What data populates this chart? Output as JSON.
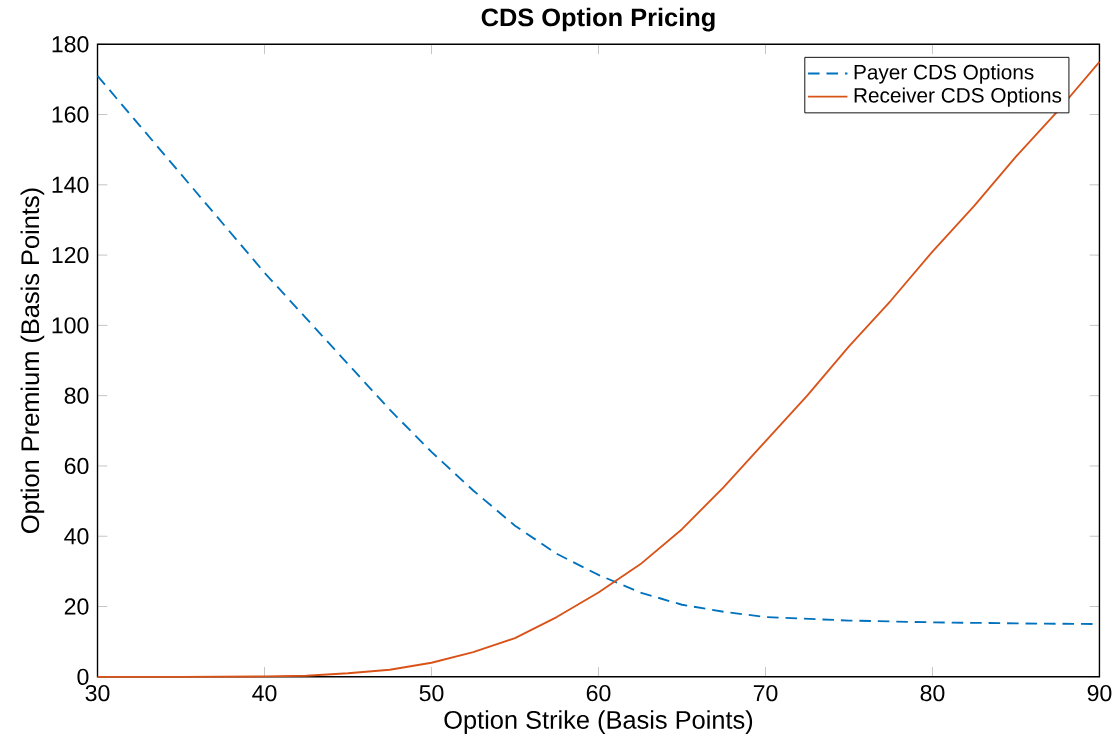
{
  "chart_data": {
    "type": "line",
    "title": "CDS Option Pricing",
    "xlabel": "Option Strike (Basis Points)",
    "ylabel": "Option Premium (Basis Points)",
    "xlim": [
      30,
      90
    ],
    "xticks": [
      30,
      40,
      50,
      60,
      70,
      80,
      90
    ],
    "ylim": [
      0,
      180
    ],
    "yticks": [
      0,
      20,
      40,
      60,
      80,
      100,
      120,
      140,
      160,
      180
    ],
    "grid": false,
    "legend": "top right",
    "series": [
      {
        "name": "Payer CDS Options",
        "color": "#0072bd",
        "line_style": "dashed",
        "x": [
          30,
          32.5,
          35,
          37.5,
          40,
          42.5,
          45,
          47.5,
          50,
          52.5,
          55,
          57.5,
          60,
          62.5,
          65,
          67.5,
          70,
          75,
          80,
          85,
          90
        ],
        "values": [
          171,
          157,
          143,
          129,
          115,
          102,
          89,
          76,
          64,
          53,
          43,
          35,
          29,
          24,
          20.5,
          18.5,
          17,
          16,
          15.5,
          15.2,
          15
        ]
      },
      {
        "name": "Receiver CDS Options",
        "color": "#d95319",
        "line_style": "solid",
        "x": [
          30,
          35,
          40,
          42.5,
          45,
          47.5,
          50,
          52.5,
          55,
          57.5,
          60,
          62.5,
          65,
          67.5,
          70,
          72.5,
          75,
          77.5,
          80,
          82.5,
          85,
          87.5,
          90
        ],
        "values": [
          0,
          0,
          0.1,
          0.3,
          1,
          2,
          4,
          7,
          11,
          17,
          24,
          32,
          42,
          54,
          67,
          80,
          94,
          107,
          121,
          134,
          148,
          161,
          175
        ]
      }
    ]
  }
}
